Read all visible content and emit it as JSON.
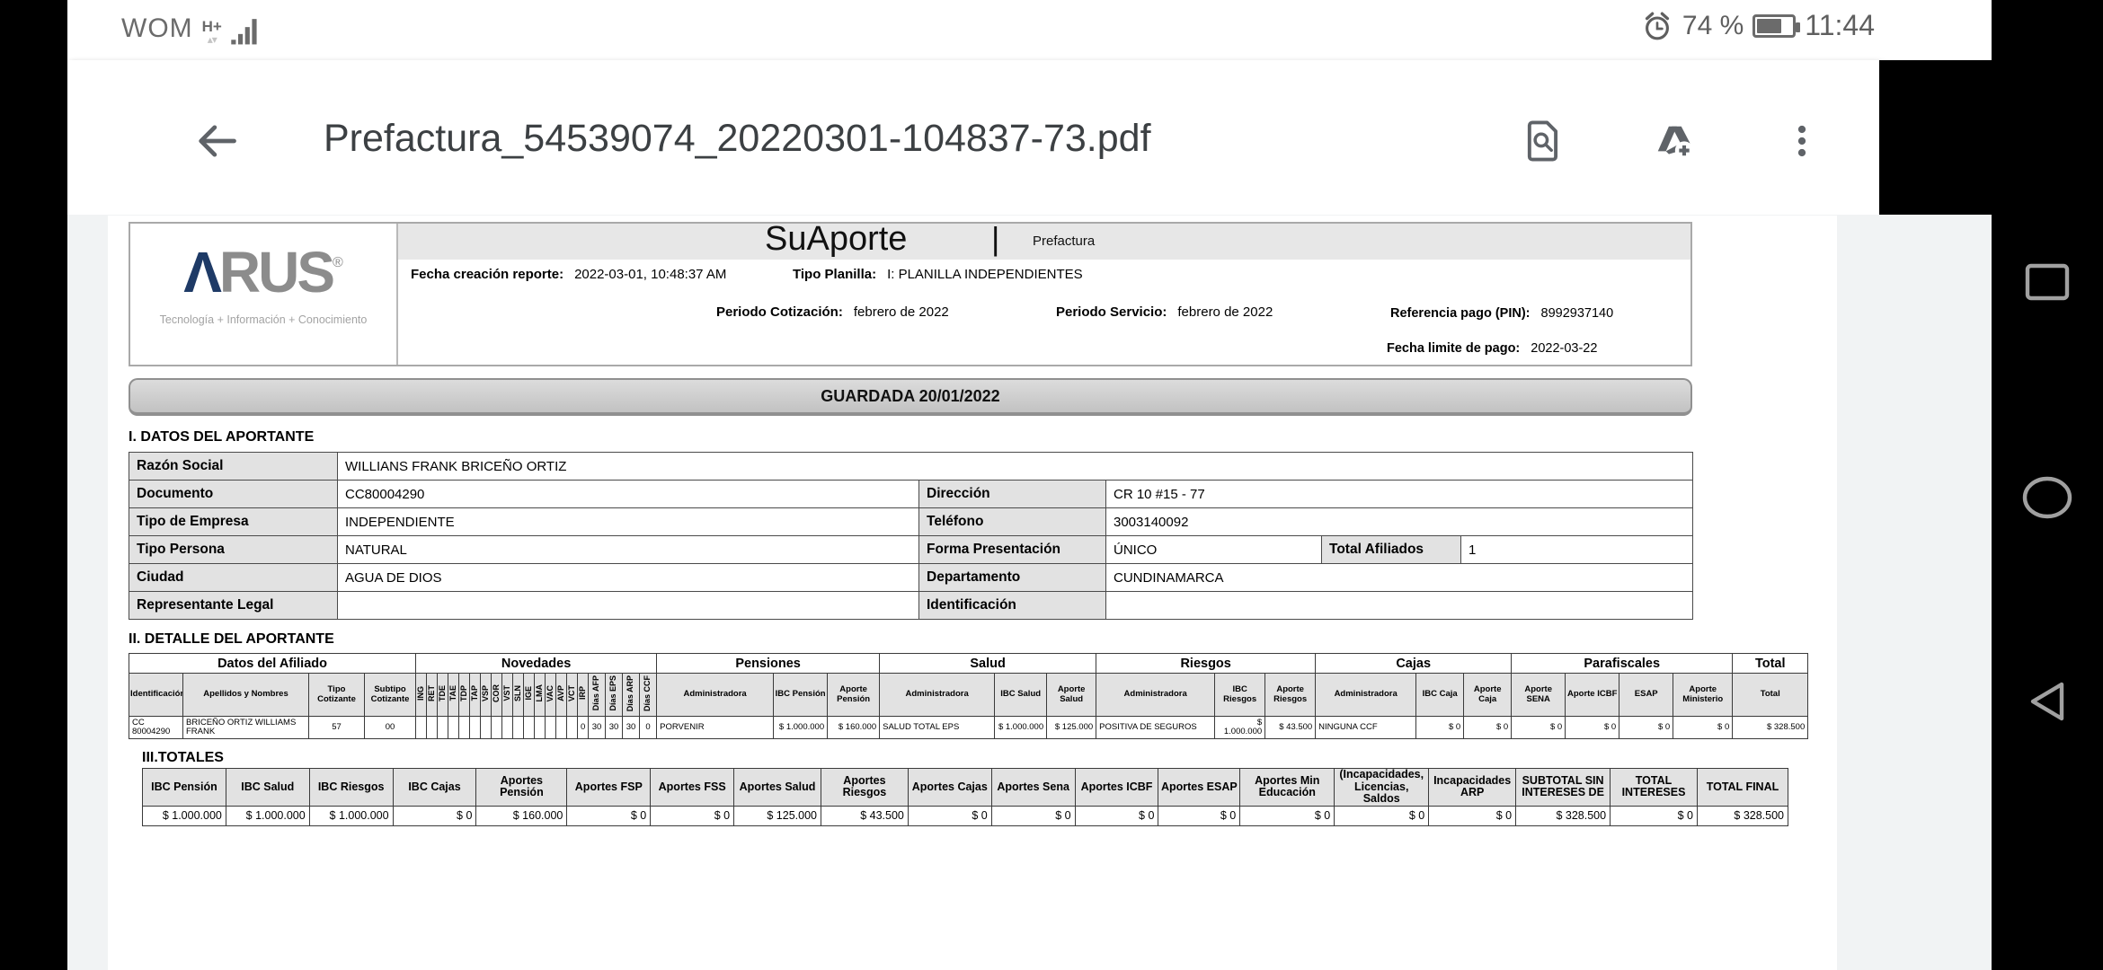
{
  "status_bar": {
    "carrier": "WOM",
    "network_type": "H+",
    "activity_arrows": "▴▾",
    "signal_icon": "signal-bars",
    "alarm_icon": "alarm-clock",
    "battery_percent": "74 %",
    "battery_level": 74,
    "time": "11:44"
  },
  "toolbar": {
    "back_icon": "back-arrow",
    "title": "Prefactura_54539074_20220301-104837-73.pdf",
    "search_icon": "find-in-document",
    "drive_icon": "add-to-drive",
    "menu_icon": "more-vertical"
  },
  "nav_bar": {
    "recents_icon": "square-outline",
    "home_icon": "circle-outline",
    "back_icon": "triangle-left-outline"
  },
  "document": {
    "brand": {
      "logo_a": "Λ",
      "logo_rus": "RUS",
      "logo_reg": "®",
      "tagline": "Tecnología + Información + Conocimiento"
    },
    "header": {
      "product": "SuAporte",
      "divider": "|",
      "report_type": "Prefactura",
      "fecha_creacion": {
        "label": "Fecha creación reporte:",
        "value": "2022-03-01, 10:48:37 AM"
      },
      "tipo_planilla": {
        "label": "Tipo Planilla:",
        "value": "I: PLANILLA INDEPENDIENTES"
      },
      "periodo_cotizacion": {
        "label": "Periodo Cotización:",
        "value": "febrero de 2022"
      },
      "periodo_servicio": {
        "label": "Periodo Servicio:",
        "value": "febrero de 2022"
      },
      "referencia_pago": {
        "label": "Referencia pago (PIN):",
        "value": "8992937140"
      },
      "fecha_limite": {
        "label": "Fecha limite de pago:",
        "value": "2022-03-22"
      }
    },
    "status_banner": "GUARDADA 20/01/2022",
    "section1": {
      "title": "I. DATOS DEL APORTANTE",
      "rows": [
        {
          "l1": "Razón Social",
          "v1": "WILLIANS FRANK BRICEÑO ORTIZ"
        },
        {
          "l1": "Documento",
          "v1": "CC80004290",
          "l2": "Dirección",
          "v2": "CR 10 #15 - 77"
        },
        {
          "l1": "Tipo de Empresa",
          "v1": "INDEPENDIENTE",
          "l2": "Teléfono",
          "v2": "3003140092"
        },
        {
          "l1": "Tipo Persona",
          "v1": "NATURAL",
          "l2": "Forma Presentación",
          "v2": "ÚNICO",
          "l3": "Total Afiliados",
          "v3": "1"
        },
        {
          "l1": "Ciudad",
          "v1": "AGUA DE DIOS",
          "l2": "Departamento",
          "v2": "CUNDINAMARCA"
        },
        {
          "l1": "Representante Legal",
          "v1": "",
          "l2": "Identificación",
          "v2": ""
        }
      ]
    },
    "section2": {
      "title": "II. DETALLE DEL APORTANTE",
      "groups": [
        {
          "label": "Datos del Afiliado",
          "span": 4
        },
        {
          "label": "Novedades",
          "span": 20
        },
        {
          "label": "Pensiones",
          "span": 3
        },
        {
          "label": "Salud",
          "span": 3
        },
        {
          "label": "Riesgos",
          "span": 3
        },
        {
          "label": "Cajas",
          "span": 3
        },
        {
          "label": "Parafiscales",
          "span": 4
        },
        {
          "label": "Total",
          "span": 1
        }
      ],
      "columns": [
        "Identificación",
        "Apellidos y Nombres",
        "Tipo Cotizante",
        "Subtipo Cotizante",
        "ING",
        "RET",
        "TDE",
        "TAE",
        "TDP",
        "TAP",
        "VSP",
        "COR",
        "VST",
        "SLN",
        "IGE",
        "LMA",
        "VAC",
        "AVP",
        "VCT",
        "IRP",
        "Días AFP",
        "Días EPS",
        "Días ARP",
        "Días CCF",
        "Administradora",
        "IBC Pensión",
        "Aporte Pensión",
        "Administradora",
        "IBC Salud",
        "Aporte Salud",
        "Administradora",
        "IBC Riesgos",
        "Aporte Riesgos",
        "Administradora",
        "IBC Caja",
        "Aporte Caja",
        "Aporte SENA",
        "Aporte ICBF",
        "ESAP",
        "Aporte Ministerio",
        "Total"
      ],
      "rows": [
        [
          "CC 80004290",
          "BRICEÑO ORTIZ WILLIAMS FRANK",
          "57",
          "00",
          "",
          "",
          "",
          "",
          "",
          "",
          "",
          "",
          "",
          "",
          "",
          "",
          "",
          "",
          "",
          "0",
          "30",
          "30",
          "30",
          "0",
          "PORVENIR",
          "$ 1.000.000",
          "$ 160.000",
          "SALUD TOTAL EPS",
          "$ 1.000.000",
          "$ 125.000",
          "POSITIVA DE SEGUROS",
          "$ 1.000.000",
          "$ 43.500",
          "NINGUNA CCF",
          "$ 0",
          "$ 0",
          "$ 0",
          "$ 0",
          "$ 0",
          "$ 0",
          "$ 328.500"
        ]
      ]
    },
    "section3": {
      "title": "III.TOTALES",
      "columns": [
        "IBC Pensión",
        "IBC Salud",
        "IBC Riesgos",
        "IBC Cajas",
        "Aportes Pensión",
        "Aportes FSP",
        "Aportes FSS",
        "Aportes Salud",
        "Aportes Riesgos",
        "Aportes Cajas",
        "Aportes Sena",
        "Aportes ICBF",
        "Aportes ESAP",
        "Aportes Min Educación",
        "(Incapacidades, Licencias, Saldos",
        "Incapacidades ARP",
        "SUBTOTAL SIN INTERESES DE",
        "TOTAL INTERESES",
        "TOTAL FINAL"
      ],
      "rows": [
        [
          "$ 1.000.000",
          "$ 1.000.000",
          "$ 1.000.000",
          "$ 0",
          "$ 160.000",
          "$ 0",
          "$ 0",
          "$ 125.000",
          "$ 43.500",
          "$ 0",
          "$ 0",
          "$ 0",
          "$ 0",
          "$ 0",
          "$ 0",
          "$ 0",
          "$ 328.500",
          "$ 0",
          "$ 328.500"
        ]
      ]
    }
  },
  "colors": {
    "toolbar_icon": "#5f6368",
    "title_text": "#3c4043",
    "page_bg": "#f1f3f4",
    "table_label_bg": "#e2e2e2",
    "banner_fill": "#cccccc",
    "logo_navy": "#1e3a66",
    "logo_gray": "#8c8c8c",
    "nav_icon": "#a0a0a0"
  }
}
